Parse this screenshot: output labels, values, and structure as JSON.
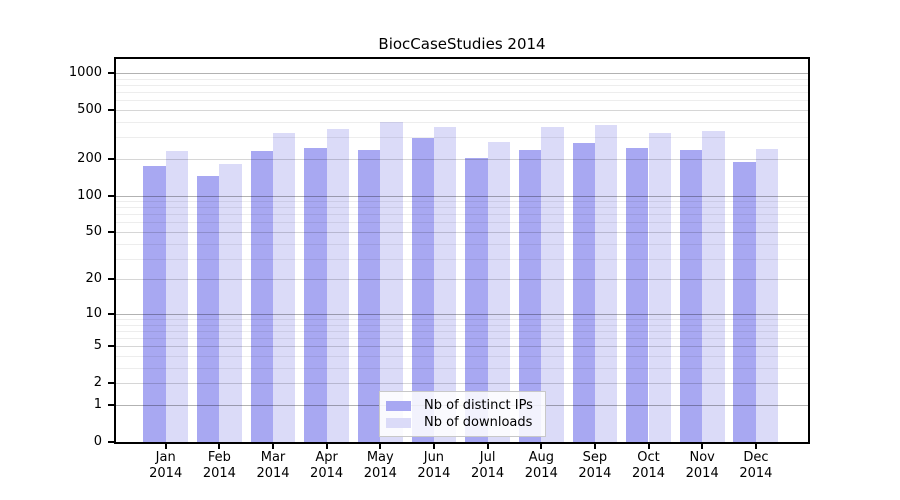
{
  "chart_data": {
    "type": "bar",
    "title": "BiocCaseStudies 2014",
    "categories": [
      "Jan 2014",
      "Feb 2014",
      "Mar 2014",
      "Apr 2014",
      "May 2014",
      "Jun 2014",
      "Jul 2014",
      "Aug 2014",
      "Sep 2014",
      "Oct 2014",
      "Nov 2014",
      "Dec 2014"
    ],
    "series": [
      {
        "name": "Nb of distinct IPs",
        "color": "#a8a8f2",
        "values": [
          176,
          144,
          230,
          243,
          234,
          293,
          202,
          234,
          267,
          244,
          237,
          187
        ]
      },
      {
        "name": "Nb of downloads",
        "color": "#dbdbf8",
        "values": [
          230,
          180,
          327,
          353,
          402,
          366,
          276,
          360,
          380,
          325,
          338,
          239
        ]
      }
    ],
    "xlabel": "",
    "ylabel": "",
    "y_axis": {
      "scale": "log10(value+1)",
      "tick_values": [
        0,
        1,
        2,
        5,
        10,
        20,
        50,
        100,
        200,
        500,
        1000
      ],
      "tick_labels": [
        "0",
        "1",
        "2",
        "5",
        "10",
        "20",
        "50",
        "100",
        "200",
        "500",
        "1000"
      ],
      "ylim": [
        0,
        1335
      ],
      "grid": "horizontal major+minor log gridlines"
    },
    "legend": {
      "position": "inside-bottom-center",
      "entries": [
        "Nb of distinct IPs",
        "Nb of downloads"
      ]
    }
  }
}
